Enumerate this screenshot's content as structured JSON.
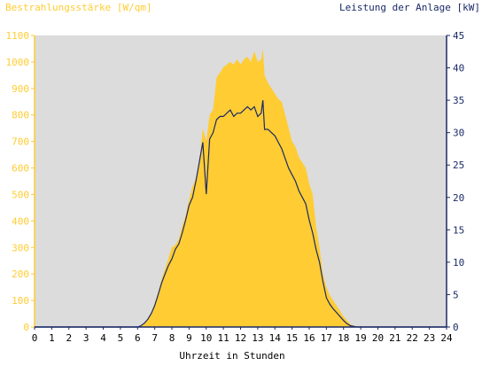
{
  "chart_data": {
    "type": "area",
    "title_left": "Bestrahlungsstärke [W/qm]",
    "title_right": "Leistung der Anlage [kW]",
    "xlabel": "Uhrzeit in Stunden",
    "x_ticks": [
      "0",
      "1",
      "2",
      "3",
      "4",
      "5",
      "6",
      "7",
      "8",
      "9",
      "10",
      "11",
      "12",
      "13",
      "14",
      "15",
      "16",
      "17",
      "18",
      "19",
      "20",
      "21",
      "22",
      "23",
      "24"
    ],
    "y_left_ticks": [
      "0",
      "100",
      "200",
      "300",
      "400",
      "500",
      "600",
      "700",
      "800",
      "900",
      "1000",
      "1100"
    ],
    "y_right_ticks": [
      "0",
      "5",
      "10",
      "15",
      "20",
      "25",
      "30",
      "35",
      "40",
      "45"
    ],
    "xlim": [
      0,
      24
    ],
    "ylim_left": [
      0,
      1100
    ],
    "ylim_right": [
      0,
      45
    ],
    "grid": false,
    "colors": {
      "plot_background": "#dcdcdc",
      "irradiance_fill": "#ffcc33",
      "power_line": "#1a2a66",
      "left_axis_text": "#ffcc33",
      "right_axis_text": "#1a2a66"
    },
    "series": [
      {
        "axis": "left",
        "style": "area",
        "x": [
          0,
          6.0,
          6.2,
          6.4,
          6.6,
          6.8,
          7.0,
          7.2,
          7.4,
          7.6,
          7.8,
          8.0,
          8.2,
          8.4,
          8.6,
          8.8,
          9.0,
          9.2,
          9.4,
          9.6,
          9.8,
          10.0,
          10.2,
          10.4,
          10.6,
          10.8,
          11.0,
          11.2,
          11.4,
          11.6,
          11.8,
          12.0,
          12.2,
          12.4,
          12.6,
          12.8,
          13.0,
          13.2,
          13.3,
          13.4,
          13.6,
          13.8,
          14.0,
          14.2,
          14.4,
          14.6,
          14.8,
          15.0,
          15.2,
          15.4,
          15.6,
          15.8,
          16.0,
          16.2,
          16.4,
          16.6,
          16.8,
          17.0,
          17.2,
          17.4,
          17.6,
          17.8,
          18.0,
          18.2,
          18.4,
          18.6,
          18.8,
          19.0,
          24
        ],
        "values": [
          0,
          0,
          5,
          15,
          30,
          55,
          90,
          130,
          180,
          220,
          260,
          300,
          310,
          330,
          380,
          420,
          480,
          530,
          560,
          620,
          750,
          700,
          800,
          820,
          940,
          960,
          980,
          990,
          1000,
          990,
          1010,
          990,
          1010,
          1020,
          1000,
          1040,
          1000,
          1010,
          1050,
          950,
          920,
          900,
          880,
          860,
          850,
          800,
          750,
          700,
          680,
          640,
          620,
          600,
          540,
          500,
          380,
          300,
          200,
          150,
          120,
          100,
          80,
          60,
          40,
          25,
          10,
          5,
          2,
          0,
          0
        ]
      },
      {
        "axis": "right",
        "style": "line",
        "x": [
          0,
          6.0,
          6.2,
          6.4,
          6.6,
          6.8,
          7.0,
          7.2,
          7.4,
          7.6,
          7.8,
          8.0,
          8.2,
          8.4,
          8.6,
          8.8,
          9.0,
          9.2,
          9.4,
          9.6,
          9.8,
          10.0,
          10.2,
          10.4,
          10.6,
          10.8,
          11.0,
          11.2,
          11.4,
          11.6,
          11.8,
          12.0,
          12.2,
          12.4,
          12.6,
          12.8,
          13.0,
          13.2,
          13.3,
          13.4,
          13.6,
          13.8,
          14.0,
          14.2,
          14.4,
          14.6,
          14.8,
          15.0,
          15.2,
          15.4,
          15.6,
          15.8,
          16.0,
          16.2,
          16.4,
          16.6,
          16.8,
          17.0,
          17.2,
          17.4,
          17.6,
          17.8,
          18.0,
          18.2,
          18.4,
          18.6,
          18.8,
          19.0,
          24
        ],
        "values": [
          0,
          0,
          0.2,
          0.6,
          1.2,
          2.1,
          3.3,
          5.0,
          6.8,
          8.2,
          9.5,
          10.5,
          12.0,
          12.8,
          14.5,
          16.5,
          18.8,
          20.0,
          22.5,
          25.5,
          28.5,
          20.5,
          29.0,
          30.0,
          32.0,
          32.5,
          32.5,
          33.0,
          33.5,
          32.5,
          33.0,
          33.0,
          33.5,
          34.0,
          33.5,
          34.0,
          32.5,
          33.0,
          35.0,
          30.5,
          30.5,
          30.0,
          29.5,
          28.5,
          27.5,
          26.0,
          24.5,
          23.5,
          22.5,
          21.0,
          20.0,
          19.0,
          16.5,
          14.5,
          12.0,
          10.0,
          7.0,
          4.5,
          3.5,
          2.8,
          2.2,
          1.6,
          1.0,
          0.5,
          0.2,
          0.1,
          0,
          0,
          0
        ]
      }
    ]
  }
}
